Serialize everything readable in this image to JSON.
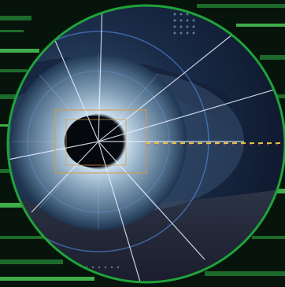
{
  "scene": {
    "subject": "eye-iris-scan",
    "overlay_label": "",
    "colors": {
      "background_dark": "#07140b",
      "stripe_green": "#1d6b2a",
      "stripe_green_bright": "#3fae4a",
      "ring_green": "#1fa33a",
      "iris_outer": "#1e3550",
      "iris_mid": "#6f8ea8",
      "iris_inner": "#c8dceb",
      "pupil": "#05080c",
      "sky_top": "#16243e",
      "skin_lower": "#2a2a3a",
      "scan_line": "#e7efff",
      "frame_orange": "#d69a4a",
      "dash_red": "#d05040",
      "dash_yellow": "#e0c040"
    },
    "icons": [
      "scan-frame-icon",
      "crosshair-lines-icon"
    ]
  }
}
